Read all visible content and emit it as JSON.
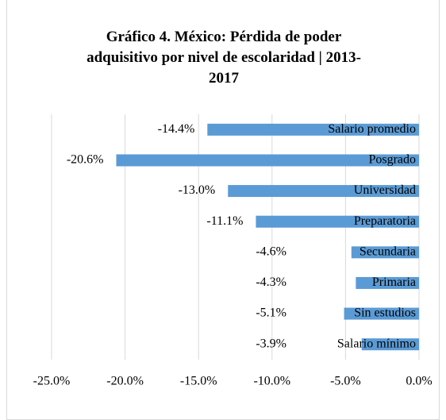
{
  "chart_data": {
    "type": "bar",
    "orientation": "horizontal",
    "title": "Gráfico 4. México: Pérdida de poder adquisitivo por nivel de escolaridad | 2013-2017",
    "categories": [
      "Salario promedio",
      "Posgrado",
      "Universidad",
      "Preparatoria",
      "Secundaria",
      "Primaria",
      "Sin estudios",
      "Salario mínimo"
    ],
    "values": [
      -14.4,
      -20.6,
      -13.0,
      -11.1,
      -4.6,
      -4.3,
      -5.1,
      -3.9
    ],
    "value_labels": [
      "-14.4%",
      "-20.6%",
      "-13.0%",
      "-11.1%",
      "-4.6%",
      "-4.3%",
      "-5.1%",
      "-3.9%"
    ],
    "color": "#5b9bd5",
    "xlim": [
      -25,
      0
    ],
    "xticks": [
      {
        "value": -25,
        "label": "-25.0%"
      },
      {
        "value": -20,
        "label": "-20.0%"
      },
      {
        "value": -15,
        "label": "-15.0%"
      },
      {
        "value": -10,
        "label": "-10.0%"
      },
      {
        "value": -5,
        "label": "-5.0%"
      },
      {
        "value": 0,
        "label": "0.0%"
      }
    ],
    "grid": true
  }
}
